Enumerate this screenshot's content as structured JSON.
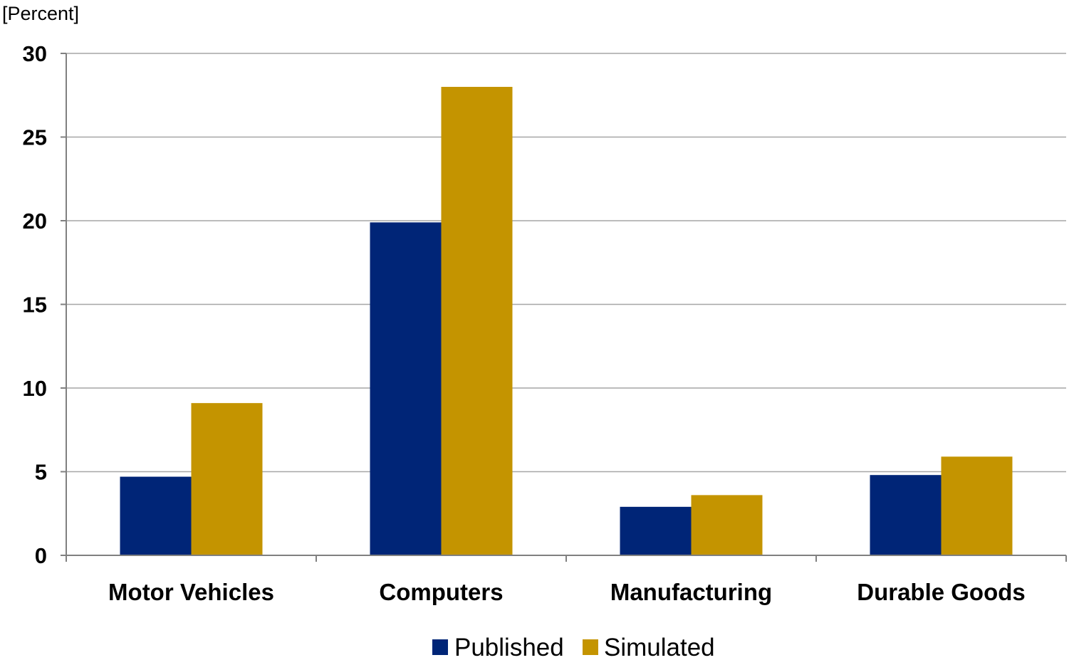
{
  "chart_data": {
    "type": "bar",
    "ylabel": "[Percent]",
    "categories": [
      "Motor Vehicles",
      "Computers",
      "Manufacturing",
      "Durable Goods"
    ],
    "series": [
      {
        "name": "Published",
        "color": "#002577",
        "values": [
          4.7,
          19.9,
          2.9,
          4.8
        ]
      },
      {
        "name": "Simulated",
        "color": "#c49400",
        "values": [
          9.1,
          28.0,
          3.6,
          5.9
        ]
      }
    ],
    "ylim": [
      0,
      30
    ],
    "yticks": [
      0,
      5,
      10,
      15,
      20,
      25,
      30
    ],
    "grid": true,
    "legend_position": "bottom"
  }
}
